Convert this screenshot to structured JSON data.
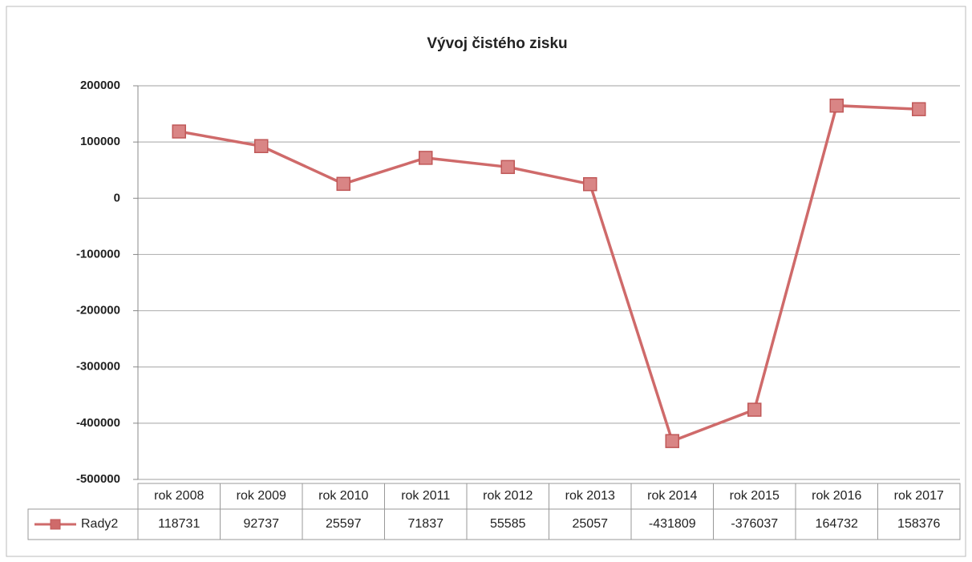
{
  "chart_data": {
    "type": "line",
    "title": "Vývoj  čistého zisku",
    "categories": [
      "rok 2008",
      "rok 2009",
      "rok 2010",
      "rok 2011",
      "rok 2012",
      "rok 2013",
      "rok 2014",
      "rok 2015",
      "rok 2016",
      "rok 2017"
    ],
    "series": [
      {
        "name": "Rady2",
        "color": "#cf6a6a",
        "values": [
          118731,
          92737,
          25597,
          71837,
          55585,
          25057,
          -431809,
          -376037,
          164732,
          158376
        ]
      }
    ],
    "ylim": [
      -500000,
      200000
    ],
    "yticks": [
      -500000,
      -400000,
      -300000,
      -200000,
      -100000,
      0,
      100000,
      200000
    ],
    "grid": true
  }
}
